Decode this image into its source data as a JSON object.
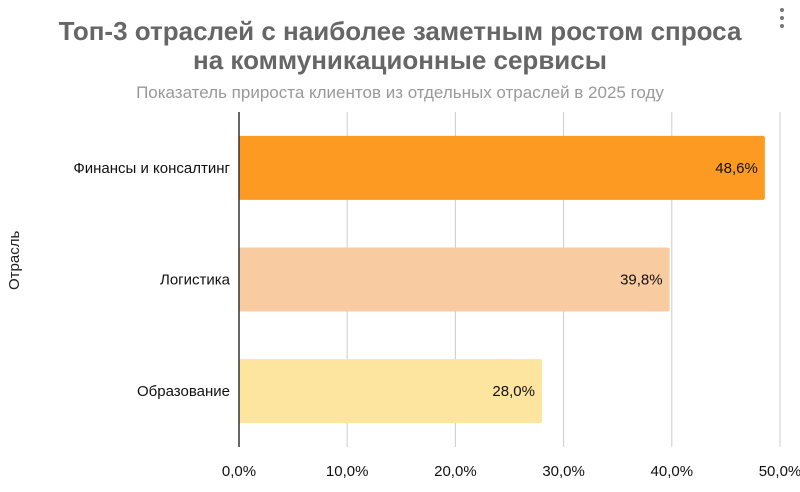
{
  "chart_data": {
    "type": "bar",
    "orientation": "horizontal",
    "title": "Топ-3 отраслей с наиболее заметным ростом спроса на коммуникационные сервисы",
    "title_lines": [
      "Топ-3 отраслей с наиболее заметным ростом спроса",
      "на коммуникационные сервисы"
    ],
    "subtitle": "Показатель прироста клиентов из отдельных отраслей в 2025 году",
    "ylabel": "Отрасль",
    "xlabel": "",
    "categories": [
      "Финансы и консалтинг",
      "Логистика",
      "Образование"
    ],
    "values": [
      48.6,
      39.8,
      28.0
    ],
    "data_labels": [
      "48,6%",
      "39,8%",
      "28,0%"
    ],
    "colors": [
      "#fd9a22",
      "#f8cba1",
      "#fde49f"
    ],
    "xlim": [
      0,
      50
    ],
    "x_ticks": [
      0,
      10,
      20,
      30,
      40,
      50
    ],
    "x_tick_labels": [
      "0,0%",
      "10,0%",
      "20,0%",
      "30,0%",
      "40,0%",
      "50,0%"
    ],
    "grid": true,
    "legend": "none"
  },
  "menu": {
    "icon": "more-vert-icon"
  }
}
